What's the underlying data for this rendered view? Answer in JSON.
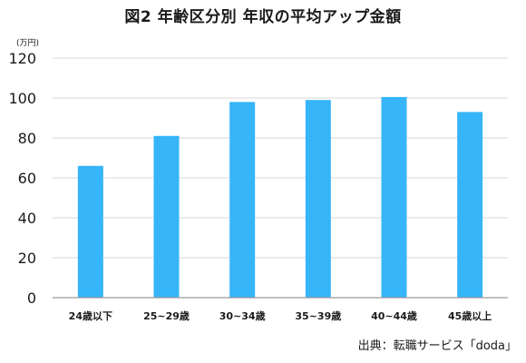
{
  "chart_data": {
    "type": "bar",
    "title": "図2 年齢区分別 年収の平均アップ金額",
    "unit_label": "(万円)",
    "categories": [
      "24歳以下",
      "25~29歳",
      "30~34歳",
      "35~39歳",
      "40~44歳",
      "45歳以上"
    ],
    "values": [
      66,
      81,
      98,
      99,
      100.5,
      93
    ],
    "ylim": [
      0,
      120
    ],
    "yticks": [
      "0",
      "20",
      "40",
      "60",
      "80",
      "100",
      "120"
    ],
    "grid": true,
    "bar_color": "#36b5f8",
    "grid_color": "#d9d9d9",
    "axis_color": "#9a9a9a"
  },
  "source": "出典：転職サービス「doda」"
}
